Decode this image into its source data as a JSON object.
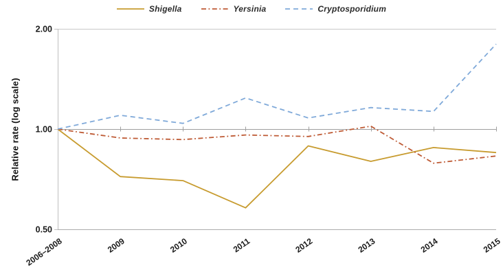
{
  "chart_data": {
    "type": "line",
    "title": "",
    "xlabel": "",
    "ylabel": "Relative rate (log scale)",
    "y_scale": "log",
    "ylim": [
      0.5,
      2.0
    ],
    "grid": "horizontal",
    "legend_position": "top-center",
    "categories": [
      "2006–2008",
      "2009",
      "2010",
      "2011",
      "2012",
      "2013",
      "2014",
      "2015"
    ],
    "yticks": [
      {
        "label": "2.00",
        "value": 2.0
      },
      {
        "label": "1.00",
        "value": 1.0
      },
      {
        "label": "0.50",
        "value": 0.5
      }
    ],
    "series": [
      {
        "name": "Shigella",
        "color": "#C79B2E",
        "line_style": "solid",
        "values": [
          1.0,
          0.72,
          0.7,
          0.58,
          0.89,
          0.8,
          0.88,
          0.85
        ]
      },
      {
        "name": "Yersinia",
        "color": "#BE5A34",
        "line_style": "dash-dot",
        "values": [
          1.0,
          0.94,
          0.93,
          0.96,
          0.95,
          1.02,
          0.79,
          0.83
        ]
      },
      {
        "name": "Cryptosporidium",
        "color": "#7FA9D9",
        "line_style": "dashed",
        "values": [
          1.0,
          1.1,
          1.04,
          1.24,
          1.08,
          1.16,
          1.13,
          1.8
        ]
      }
    ],
    "colors": {
      "grid_light": "#C9C9C9",
      "axis_mid": "#9E9E9E",
      "axis_bottom": "#ABABAB",
      "y_axis_line": "#BFBFBF",
      "text": "#1B1B1B"
    }
  }
}
